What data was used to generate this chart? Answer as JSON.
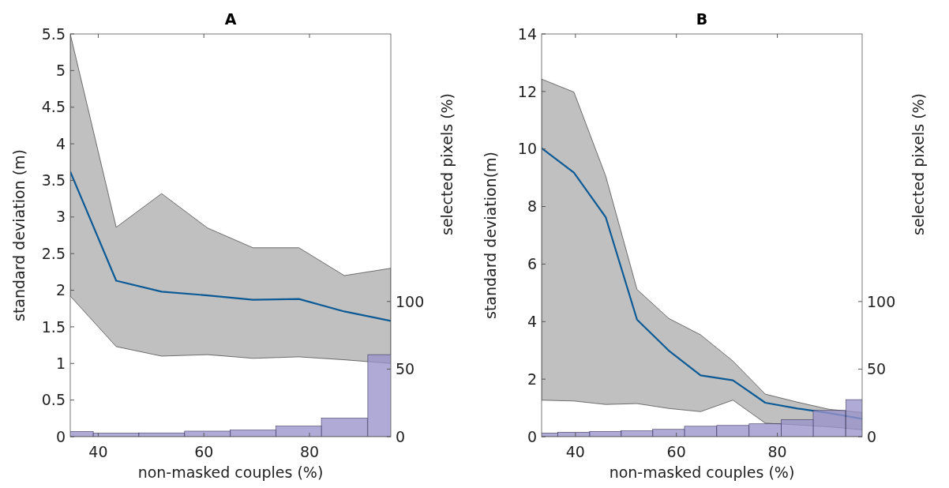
{
  "chart_data": [
    {
      "type": "line",
      "title": "A",
      "xlabel": "non-masked couples (%)",
      "ylabel": "standard deviation (m)",
      "y2label": "selected pixels (%)",
      "xlim": [
        34.7,
        95.4
      ],
      "xticks": [
        40,
        60,
        80
      ],
      "ylim": [
        0,
        5.5
      ],
      "yticks": [
        0,
        0.5,
        1,
        1.5,
        2,
        2.5,
        3,
        3.5,
        4,
        4.5,
        5,
        5.5
      ],
      "y2lim": [
        0,
        298
      ],
      "y2ticks": [
        0,
        50,
        100
      ],
      "grid": false,
      "series": [
        {
          "color": "#0b5a96",
          "x": [
            34.7,
            43.4,
            52,
            60.7,
            69.3,
            78,
            86.6,
            95.4
          ],
          "values": [
            3.62,
            2.13,
            1.98,
            1.93,
            1.87,
            1.88,
            1.71,
            1.58
          ],
          "lower": [
            1.92,
            1.23,
            1.1,
            1.12,
            1.07,
            1.09,
            1.05,
            1.0
          ],
          "upper": [
            5.5,
            2.86,
            3.32,
            2.85,
            2.58,
            2.58,
            2.2,
            2.3
          ]
        },
        {
          "type": "bar",
          "axis": "y2",
          "color": "#9a93ca",
          "x": [
            34.7,
            43.4,
            52,
            60.7,
            69.3,
            78,
            86.6,
            95.4
          ],
          "values": [
            3.8,
            2.6,
            2.8,
            4.1,
            4.9,
            7.8,
            13.7,
            60.7
          ]
        }
      ]
    },
    {
      "type": "line",
      "title": "B",
      "xlabel": "non-masked couples (%)",
      "ylabel": "standard deviation(m)",
      "y2label": "selected pixels (%)",
      "xlim": [
        33.3,
        96.8
      ],
      "xticks": [
        40,
        60,
        80
      ],
      "ylim": [
        0,
        14
      ],
      "yticks": [
        0,
        2,
        4,
        6,
        8,
        10,
        12,
        14
      ],
      "y2lim": [
        0,
        298
      ],
      "y2ticks": [
        0,
        50,
        100
      ],
      "grid": false,
      "series": [
        {
          "color": "#0b5a96",
          "x": [
            33.3,
            39.7,
            46,
            52.2,
            58.5,
            64.8,
            71.2,
            77.6,
            84,
            90.3,
            96.8
          ],
          "values": [
            10.03,
            9.18,
            7.63,
            4.07,
            2.99,
            2.13,
            1.96,
            1.18,
            0.98,
            0.82,
            0.62
          ],
          "lower": [
            1.27,
            1.24,
            1.12,
            1.15,
            0.98,
            0.87,
            1.27,
            0.47,
            0.41,
            0.34,
            0.24
          ],
          "upper": [
            12.43,
            11.98,
            9.06,
            5.12,
            4.11,
            3.54,
            2.63,
            1.48,
            1.2,
            0.95,
            0.84
          ]
        },
        {
          "type": "bar",
          "axis": "y2",
          "color": "#9a93ca",
          "x": [
            33.3,
            39.7,
            46,
            52.2,
            58.5,
            64.8,
            71.2,
            77.6,
            84,
            90.3,
            96.8
          ],
          "values": [
            2.7,
            3.3,
            3.9,
            4.3,
            5.4,
            7.7,
            8.3,
            9.5,
            12.7,
            19.4,
            27.4
          ]
        }
      ]
    }
  ]
}
